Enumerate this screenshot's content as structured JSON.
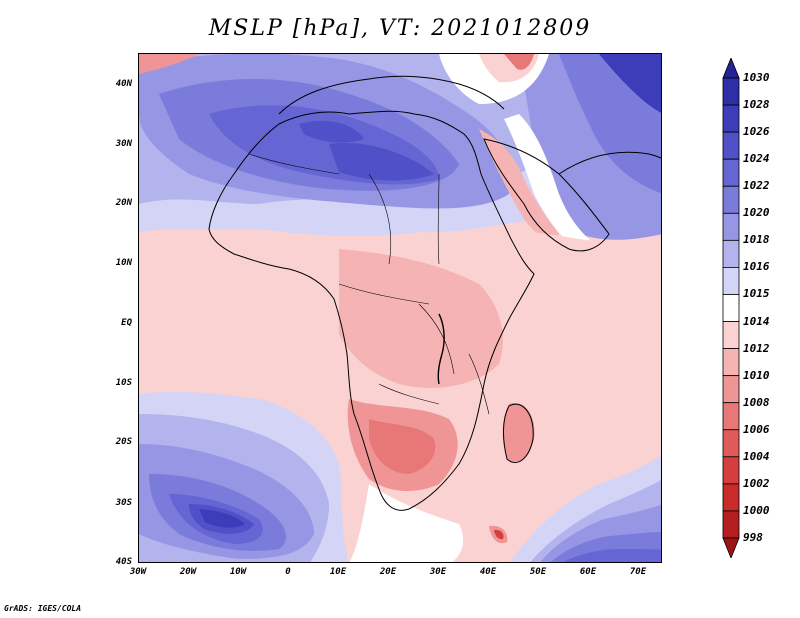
{
  "title": "MSLP [hPa], VT: 2021012809",
  "credit": "GrADS: IGES/COLA",
  "latitude_labels": [
    "40N",
    "30N",
    "20N",
    "10N",
    "EQ",
    "10S",
    "20S",
    "30S",
    "40S"
  ],
  "longitude_labels": [
    "30W",
    "20W",
    "10W",
    "0",
    "10E",
    "20E",
    "30E",
    "40E",
    "50E",
    "60E",
    "70E"
  ],
  "colorbar": {
    "levels": [
      "1030",
      "1028",
      "1026",
      "1024",
      "1022",
      "1020",
      "1018",
      "1016",
      "1015",
      "1014",
      "1012",
      "1010",
      "1008",
      "1006",
      "1004",
      "1002",
      "1000",
      "998"
    ],
    "colors": [
      "#232394",
      "#2e2ea8",
      "#3d3dba",
      "#5050c8",
      "#6565d3",
      "#7b7bdc",
      "#9696e5",
      "#b3b3ee",
      "#d4d4f7",
      "#ffffff",
      "#fbd2d2",
      "#f5b3b3",
      "#ef9595",
      "#e87878",
      "#e05a5a",
      "#d63e3e",
      "#c92a2a",
      "#b51e1e",
      "#9e1414"
    ]
  },
  "colors": {
    "ocean_pink": "#fbd2d2",
    "land_pink": "#f5b3b3",
    "high_blue": "#5050c8",
    "outline": "#000000"
  }
}
